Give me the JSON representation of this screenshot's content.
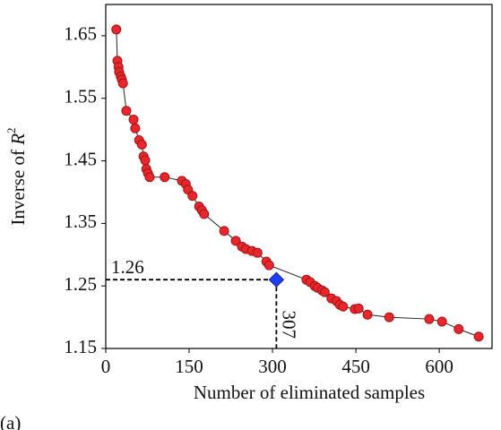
{
  "chart_data": {
    "type": "line",
    "x_label": "Number of eliminated samples",
    "y_label": {
      "text": "Inverse of ",
      "var": "R",
      "sup": "2"
    },
    "panel_label": "(a)",
    "x": [
      19,
      21,
      23,
      24,
      27,
      29,
      31,
      37,
      50,
      53,
      60,
      65,
      68,
      71,
      73,
      76,
      79,
      106,
      137,
      144,
      148,
      156,
      168,
      173,
      177,
      213,
      234,
      245,
      252,
      263,
      273,
      289,
      294,
      361,
      368,
      376,
      381,
      389,
      394,
      406,
      415,
      421,
      427,
      448,
      455,
      471,
      510,
      582,
      605,
      635,
      671
    ],
    "series": [
      {
        "color": "#e8262b",
        "values": [
          1.66,
          1.61,
          1.6,
          1.592,
          1.585,
          1.58,
          1.574,
          1.53,
          1.516,
          1.502,
          1.483,
          1.476,
          1.457,
          1.451,
          1.437,
          1.43,
          1.424,
          1.424,
          1.418,
          1.413,
          1.404,
          1.394,
          1.377,
          1.371,
          1.365,
          1.338,
          1.322,
          1.313,
          1.309,
          1.306,
          1.303,
          1.289,
          1.283,
          1.26,
          1.256,
          1.25,
          1.247,
          1.243,
          1.24,
          1.23,
          1.226,
          1.22,
          1.217,
          1.213,
          1.214,
          1.204,
          1.2,
          1.197,
          1.193,
          1.181,
          1.169
        ]
      }
    ],
    "highlight": {
      "x": 307,
      "y": 1.26,
      "color": "#1f3fff"
    },
    "xlim": [
      0,
      695
    ],
    "ylim": [
      1.15,
      1.7
    ],
    "xticks": [
      0,
      150,
      300,
      450,
      600
    ],
    "yticks": [
      1.15,
      1.25,
      1.35,
      1.45,
      1.55,
      1.65
    ]
  }
}
